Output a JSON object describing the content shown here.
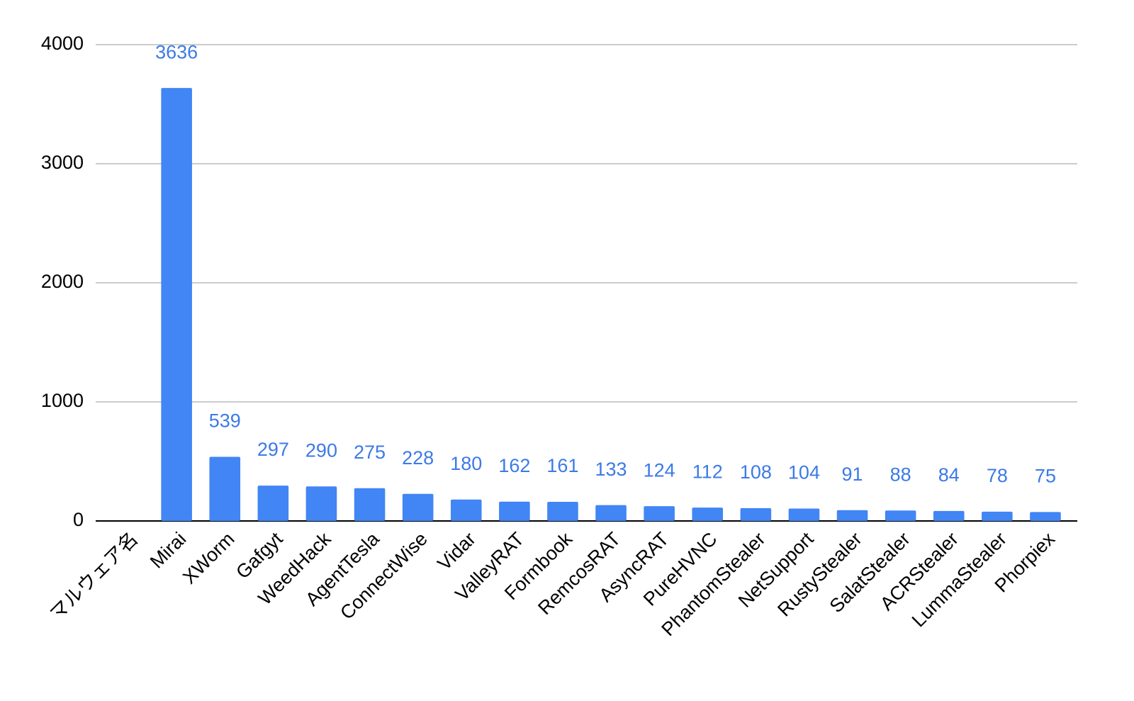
{
  "chart_data": {
    "type": "bar",
    "categories": [
      "マルウェア名",
      "Mirai",
      "XWorm",
      "Gafgyt",
      "WeedHack",
      "AgentTesla",
      "ConnectWise",
      "Vidar",
      "ValleyRAT",
      "Formbook",
      "RemcosRAT",
      "AsyncRAT",
      "PureHVNC",
      "PhantomStealer",
      "NetSupport",
      "RustyStealer",
      "SalatStealer",
      "ACRStealer",
      "LummaStealer",
      "Phorpiex"
    ],
    "values": [
      null,
      3636,
      539,
      297,
      290,
      275,
      228,
      180,
      162,
      161,
      133,
      124,
      112,
      108,
      104,
      91,
      88,
      84,
      78,
      75
    ],
    "color": "#4285f4",
    "label_color": "#3c7ae6",
    "ylim": [
      0,
      4000
    ],
    "yticks": [
      0,
      1000,
      2000,
      3000,
      4000
    ],
    "grid": true
  }
}
